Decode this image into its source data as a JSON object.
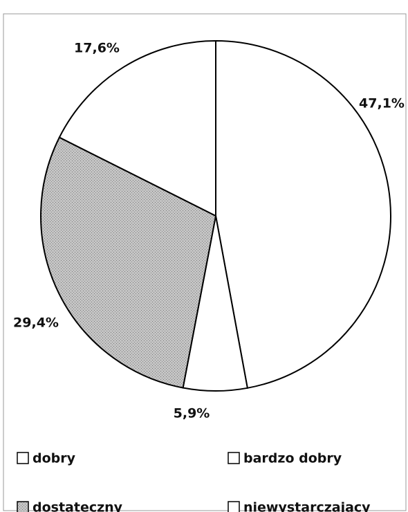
{
  "chart_data": {
    "type": "pie",
    "categories": [
      "dobry",
      "bardzo dobry",
      "dostateczny",
      "niewystarczający"
    ],
    "values": [
      47.1,
      5.9,
      29.4,
      17.6
    ],
    "value_labels": [
      "47,1%",
      "5,9%",
      "29,4%",
      "17,6%"
    ],
    "colors": [
      "#ffffff",
      "#ffffff",
      "#b8b8b8",
      "#ffffff"
    ],
    "legend": "bottom"
  }
}
